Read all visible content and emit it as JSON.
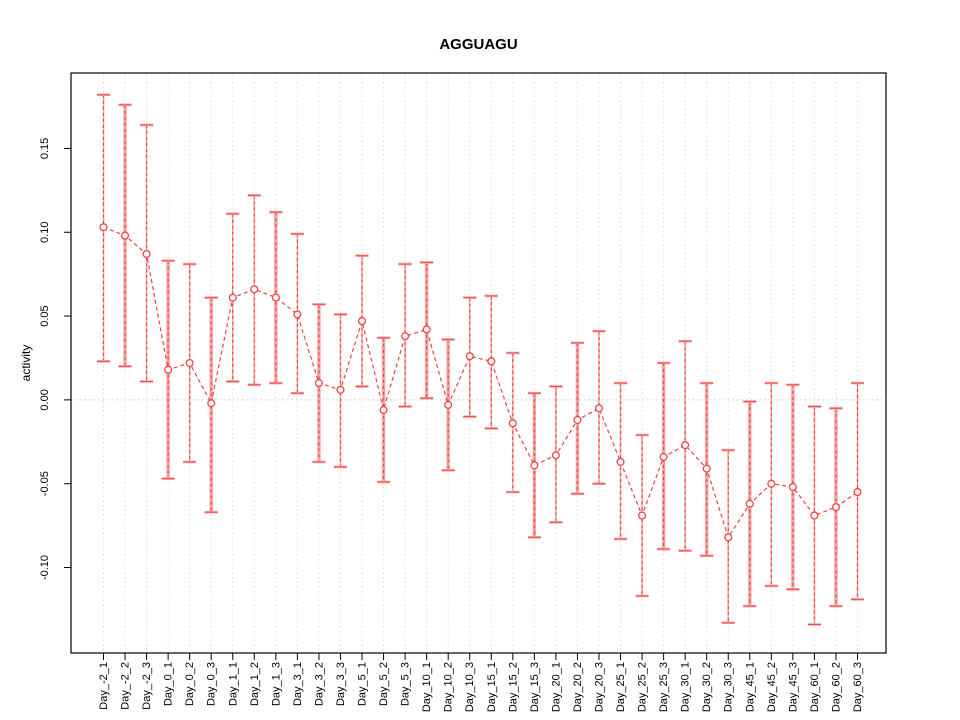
{
  "title": "AGGUAGU",
  "chart_data": {
    "type": "line",
    "title": "AGGUAGU",
    "xlabel": "",
    "ylabel": "activity",
    "legend_position": "none",
    "grid": "vertical-dotted",
    "zero_line_dotted": true,
    "ylim": [
      -0.151,
      0.195
    ],
    "yticks": [
      0.15,
      0.1,
      0.05,
      0.0,
      -0.05,
      -0.1
    ],
    "ytick_labels": [
      "0.15",
      "0.10",
      "0.05",
      "0.00",
      "-0.05",
      "-0.10"
    ],
    "categories": [
      "Day_-2_1",
      "Day_-2_2",
      "Day_-2_3",
      "Day_0_1",
      "Day_0_2",
      "Day_0_3",
      "Day_1_1",
      "Day_1_2",
      "Day_1_3",
      "Day_3_1",
      "Day_3_2",
      "Day_3_3",
      "Day_5_1",
      "Day_5_2",
      "Day_5_3",
      "Day_10_1",
      "Day_10_2",
      "Day_10_3",
      "Day_15_1",
      "Day_15_2",
      "Day_15_3",
      "Day_20_1",
      "Day_20_2",
      "Day_20_3",
      "Day_25_1",
      "Day_25_2",
      "Day_25_3",
      "Day_30_1",
      "Day_30_2",
      "Day_30_3",
      "Day_45_1",
      "Day_45_2",
      "Day_45_3",
      "Day_60_1",
      "Day_60_2",
      "Day_60_3"
    ],
    "series": [
      {
        "name": "activity",
        "marker": "open-circle",
        "line_style": "dashed",
        "values": [
          0.103,
          0.098,
          0.087,
          0.018,
          0.022,
          -0.002,
          0.061,
          0.066,
          0.061,
          0.051,
          0.01,
          0.006,
          0.047,
          -0.006,
          0.038,
          0.042,
          -0.003,
          0.026,
          0.023,
          -0.014,
          -0.039,
          -0.033,
          -0.012,
          -0.005,
          -0.037,
          -0.069,
          -0.034,
          -0.027,
          -0.041,
          -0.082,
          -0.062,
          -0.05,
          -0.052,
          -0.069,
          -0.064,
          -0.055
        ],
        "error_lower": [
          0.023,
          0.02,
          0.011,
          -0.047,
          -0.037,
          -0.067,
          0.011,
          0.009,
          0.01,
          0.004,
          -0.037,
          -0.04,
          0.008,
          -0.049,
          -0.004,
          0.001,
          -0.042,
          -0.01,
          -0.017,
          -0.055,
          -0.082,
          -0.073,
          -0.056,
          -0.05,
          -0.083,
          -0.117,
          -0.089,
          -0.09,
          -0.093,
          -0.133,
          -0.123,
          -0.111,
          -0.113,
          -0.134,
          -0.123,
          -0.119
        ],
        "error_upper": [
          0.182,
          0.176,
          0.164,
          0.083,
          0.081,
          0.061,
          0.111,
          0.122,
          0.112,
          0.099,
          0.057,
          0.051,
          0.086,
          0.037,
          0.081,
          0.082,
          0.036,
          0.061,
          0.062,
          0.028,
          0.004,
          0.008,
          0.034,
          0.041,
          0.01,
          -0.021,
          0.022,
          0.035,
          0.01,
          -0.03,
          -0.001,
          0.01,
          0.009,
          -0.004,
          -0.005,
          0.01
        ],
        "bar_styles": [
          "dashed",
          "solid",
          "dashed",
          "solid",
          "dashed",
          "solid",
          "dashed",
          "dashed",
          "solid",
          "dashed",
          "solid",
          "dashed",
          "dashed",
          "solid",
          "dashed",
          "solid",
          "solid",
          "dashed",
          "dashed",
          "dashed",
          "solid",
          "dashed",
          "solid",
          "dashed",
          "dashed",
          "dashed",
          "solid",
          "dashed",
          "solid",
          "dashed",
          "solid",
          "dashed",
          "solid",
          "dashed",
          "solid",
          "dashed"
        ]
      }
    ],
    "colors": {
      "point": "#ee4343",
      "line": "#ee4343",
      "error_bar_light": "#f9a2a2",
      "error_bar_dark": "#ee4343",
      "grid": "#dcdcdc",
      "zero_line": "#c9c9c9",
      "frame": "#000000",
      "text": "#000000"
    }
  }
}
